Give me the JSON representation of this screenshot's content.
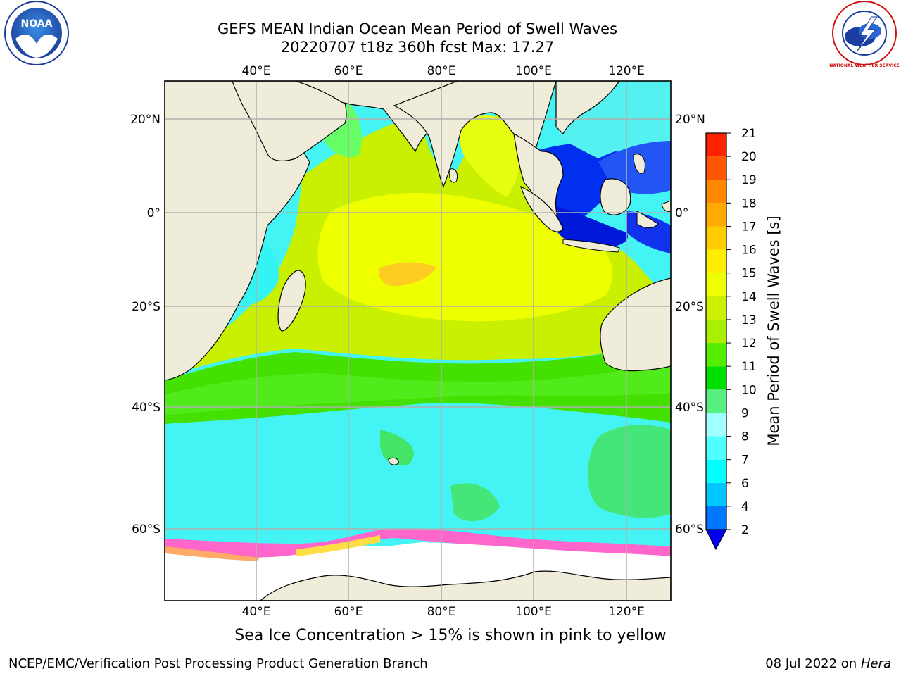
{
  "title_line1": "GEFS MEAN Indian Ocean Mean Period of Swell Waves",
  "title_line2": "20220707 t18z 360h fcst   Max: 17.27",
  "caption": "Sea Ice Concentration > 15% is shown in pink to yellow",
  "credit": "NCEP/EMC/Verification Post Processing Product Generation Branch",
  "stamp_date": "08 Jul 2022 on ",
  "stamp_host": "Hera",
  "logos": {
    "noaa": {
      "icon": "noaa-logo-icon",
      "text": "NOAA"
    },
    "nws": {
      "icon": "nws-logo-icon",
      "text": "NATIONAL WEATHER SERVICE"
    }
  },
  "map": {
    "lon_range": [
      20,
      130
    ],
    "lat_range": [
      -72,
      28
    ],
    "lon_ticks": [
      "40°E",
      "60°E",
      "80°E",
      "100°E",
      "120°E"
    ],
    "lat_ticks": [
      "20°N",
      "0°",
      "20°S",
      "40°S",
      "60°S"
    ],
    "grid": true
  },
  "colorbar": {
    "title": "Mean Period of Swell Waves [s]",
    "labels": [
      "2",
      "4",
      "6",
      "7",
      "8",
      "9",
      "10",
      "11",
      "12",
      "13",
      "14",
      "15",
      "16",
      "17",
      "18",
      "19",
      "20",
      "21"
    ],
    "colors": [
      "#0077ff",
      "#00c8ff",
      "#00ffff",
      "#50ffff",
      "#a0ffff",
      "#55f080",
      "#00e000",
      "#55ee00",
      "#aaee00",
      "#ccf000",
      "#eeff00",
      "#ffee00",
      "#ffcc00",
      "#ffaa00",
      "#ff8800",
      "#ff5500",
      "#ff2200"
    ],
    "extend_color": "#0000ee"
  }
}
